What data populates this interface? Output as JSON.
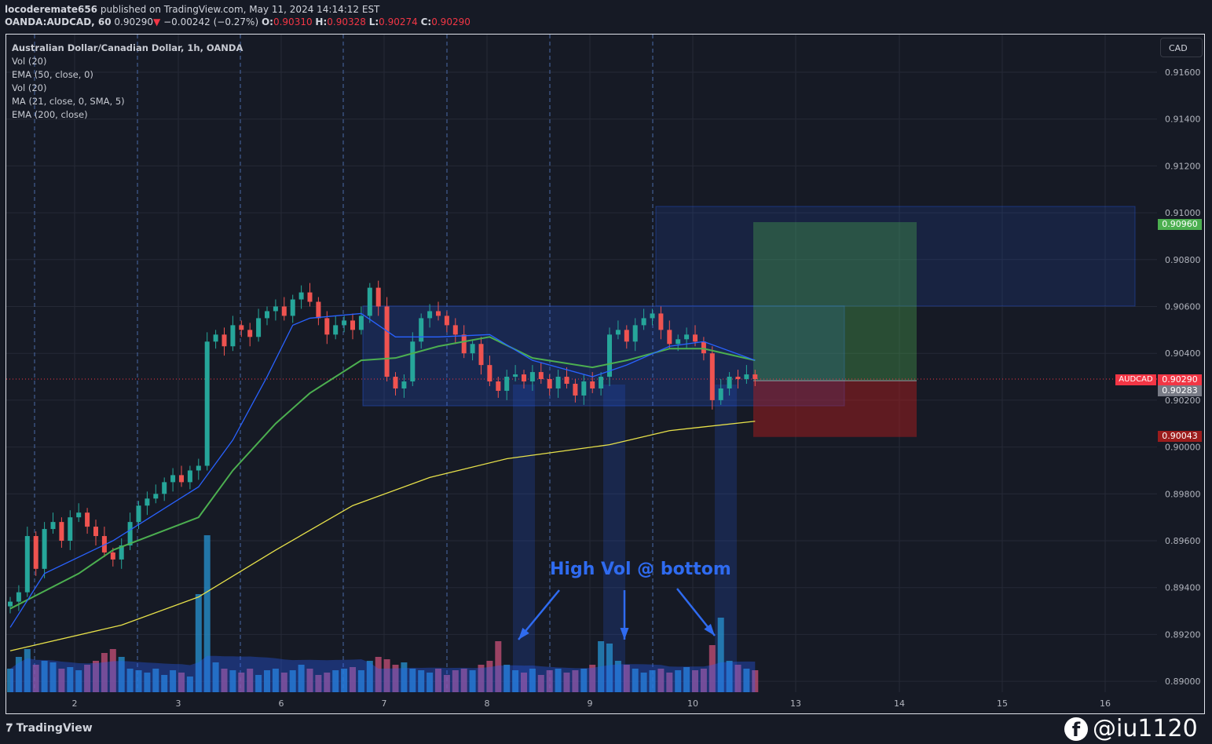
{
  "header": {
    "publisher": "locoderemate656",
    "published_text": "published on TradingView.com, May 11, 2024 14:14:12 EST",
    "symbol": "OANDA:AUDCAD, 60",
    "last": "0.90290",
    "change": "−0.00242 (−0.27%)",
    "direction_icon": "triangle-down-icon",
    "o_label": "O:",
    "o": "0.90310",
    "h_label": "H:",
    "h": "0.90328",
    "l_label": "L:",
    "l": "0.90274",
    "c_label": "C:",
    "c": "0.90290"
  },
  "legend": [
    "Australian Dollar/Canadian Dollar, 1h, OANDA",
    "Vol (20)",
    "EMA (50, close, 0)",
    "Vol (20)",
    "MA (21, close, 0, SMA, 5)",
    "EMA (200, close)"
  ],
  "currency_button": "CAD",
  "price_labels": {
    "symbol_tag": "AUDCAD",
    "current": "0.90290",
    "entry": "0.90283",
    "target": "0.90960",
    "stop": "0.90043"
  },
  "annotation": "High Vol @ bottom",
  "watermark": "@iu1120",
  "brand": "TradingView",
  "colors": {
    "background": "#161a25",
    "up": "#26a69a",
    "down": "#ef5350",
    "ema50": "#4caf50",
    "ma21": "#2962ff",
    "ema200": "#e8e24a",
    "annotation": "#2f6bf0",
    "target": "#4caf50",
    "stop": "#b71c1c"
  },
  "chart_data": {
    "type": "candlestick",
    "title": "Australian Dollar/Canadian Dollar, 1h, OANDA",
    "ylim": [
      0.89,
      0.917
    ],
    "y_ticks": [
      "0.91600",
      "0.91400",
      "0.91200",
      "0.91000",
      "0.90800",
      "0.90600",
      "0.90400",
      "0.90200",
      "0.90000",
      "0.89800",
      "0.89600",
      "0.89400",
      "0.89200",
      "0.89000"
    ],
    "x_ticks": [
      "2",
      "3",
      "6",
      "7",
      "8",
      "9",
      "10",
      "13",
      "14",
      "15",
      "16"
    ],
    "grid": true,
    "closes": [
      0.8934,
      0.8938,
      0.8962,
      0.8948,
      0.8965,
      0.8968,
      0.896,
      0.897,
      0.8972,
      0.8966,
      0.8962,
      0.8955,
      0.8952,
      0.8958,
      0.8968,
      0.8975,
      0.8978,
      0.898,
      0.8985,
      0.8988,
      0.8985,
      0.899,
      0.8992,
      0.9045,
      0.9048,
      0.9043,
      0.9052,
      0.905,
      0.9047,
      0.9055,
      0.9058,
      0.906,
      0.9056,
      0.9063,
      0.9066,
      0.9062,
      0.9055,
      0.9048,
      0.9052,
      0.9054,
      0.905,
      0.9056,
      0.9068,
      0.906,
      0.903,
      0.9025,
      0.9028,
      0.9045,
      0.9055,
      0.9058,
      0.9056,
      0.9052,
      0.9048,
      0.904,
      0.9044,
      0.9035,
      0.9028,
      0.9024,
      0.903,
      0.9031,
      0.9028,
      0.9032,
      0.9029,
      0.9025,
      0.903,
      0.9027,
      0.9022,
      0.9028,
      0.9025,
      0.903,
      0.9048,
      0.905,
      0.9045,
      0.9052,
      0.9055,
      0.9057,
      0.905,
      0.9044,
      0.9046,
      0.9048,
      0.9045,
      0.904,
      0.902,
      0.9025,
      0.903,
      0.9029,
      0.9031,
      0.9029
    ],
    "volume": [
      30,
      45,
      55,
      35,
      40,
      38,
      30,
      32,
      28,
      35,
      40,
      50,
      55,
      45,
      30,
      28,
      25,
      30,
      22,
      28,
      25,
      20,
      125,
      200,
      38,
      30,
      28,
      25,
      30,
      22,
      28,
      30,
      25,
      28,
      35,
      30,
      22,
      25,
      28,
      30,
      32,
      28,
      40,
      45,
      42,
      35,
      38,
      30,
      28,
      25,
      30,
      22,
      28,
      30,
      28,
      35,
      40,
      65,
      35,
      28,
      25,
      30,
      22,
      28,
      30,
      25,
      28,
      30,
      35,
      65,
      62,
      40,
      35,
      30,
      25,
      28,
      30,
      25,
      28,
      32,
      28,
      30,
      60,
      95,
      40,
      35,
      30,
      28
    ],
    "series": [
      {
        "name": "EMA (50, close, 0)",
        "points": [
          [
            0,
            0.8931
          ],
          [
            8,
            0.8946
          ],
          [
            12,
            0.8956
          ],
          [
            22,
            0.897
          ],
          [
            26,
            0.899
          ],
          [
            31,
            0.901
          ],
          [
            35,
            0.9023
          ],
          [
            41,
            0.9037
          ],
          [
            45,
            0.9038
          ],
          [
            50,
            0.9043
          ],
          [
            56,
            0.9047
          ],
          [
            61,
            0.9038
          ],
          [
            68,
            0.9034
          ],
          [
            72,
            0.9037
          ],
          [
            77,
            0.9042
          ],
          [
            81,
            0.9042
          ],
          [
            87,
            0.9037
          ]
        ]
      },
      {
        "name": "MA (21, close, 0, SMA, 5)",
        "points": [
          [
            0,
            0.8923
          ],
          [
            4,
            0.8946
          ],
          [
            12,
            0.896
          ],
          [
            22,
            0.8983
          ],
          [
            26,
            0.9003
          ],
          [
            30,
            0.903
          ],
          [
            33,
            0.9052
          ],
          [
            35,
            0.9055
          ],
          [
            41,
            0.9057
          ],
          [
            45,
            0.9047
          ],
          [
            50,
            0.9047
          ],
          [
            56,
            0.9048
          ],
          [
            61,
            0.9037
          ],
          [
            68,
            0.903
          ],
          [
            72,
            0.9035
          ],
          [
            77,
            0.9043
          ],
          [
            81,
            0.9045
          ],
          [
            87,
            0.9037
          ]
        ]
      },
      {
        "name": "EMA (200, close)",
        "points": [
          [
            0,
            0.8913
          ],
          [
            13,
            0.8924
          ],
          [
            22,
            0.8936
          ],
          [
            31,
            0.8956
          ],
          [
            40,
            0.8975
          ],
          [
            49,
            0.8987
          ],
          [
            58,
            0.8995
          ],
          [
            70,
            0.9001
          ],
          [
            77,
            0.9007
          ],
          [
            87,
            0.9011
          ]
        ]
      }
    ],
    "drawings": {
      "range_box": [
        0.90176,
        0.90602
      ],
      "upper_box": [
        0.90602,
        0.91027
      ],
      "long_position": {
        "target": 0.9096,
        "entry": 0.90283,
        "stop": 0.90043
      },
      "current_price": 0.9029
    }
  }
}
